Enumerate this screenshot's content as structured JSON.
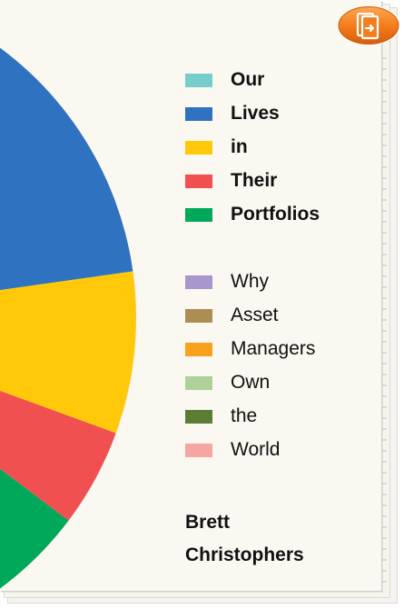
{
  "cover": {
    "title_lines": [
      "Our",
      "Lives",
      "in",
      "Their",
      "Portfolios"
    ],
    "subtitle_lines": [
      "Why",
      "Asset",
      "Managers",
      "Own",
      "the",
      "World"
    ],
    "author_lines": [
      "Brett",
      "Christophers"
    ],
    "paper_color": "#fbf7f1"
  },
  "legend": {
    "title_colors": [
      "#77cdc9",
      "#2f72c0",
      "#ffc90a",
      "#f05050",
      "#00a85a"
    ],
    "subtitle_colors": [
      "#a897cc",
      "#ac8e52",
      "#f7a21f",
      "#aed19a",
      "#5b7d34",
      "#f6a6a0"
    ]
  },
  "pie": {
    "segments": [
      {
        "color": "#2f72c0"
      },
      {
        "color": "#ffc90a"
      },
      {
        "color": "#f05050"
      },
      {
        "color": "#00a85a"
      }
    ]
  },
  "reader_button": {
    "icon": "book-reader-icon",
    "color": "#f07a18"
  }
}
